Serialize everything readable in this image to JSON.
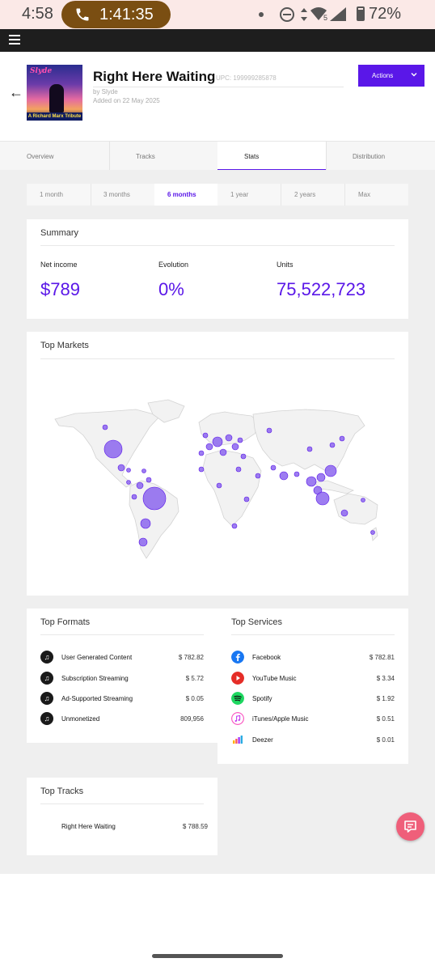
{
  "status_bar": {
    "time": "4:58",
    "call_duration": "1:41:35",
    "signal_badge": "5",
    "battery": "72%"
  },
  "release": {
    "cover_brand": "Slyde",
    "cover_banner": "A Richard Marx Tribute",
    "title": "Right Here Waiting",
    "upc": "UPC: 199999285878",
    "by": "by Slyde",
    "added": "Added on 22 May 2025",
    "actions_label": "Actions"
  },
  "tabs": [
    {
      "label": "Overview",
      "active": false
    },
    {
      "label": "Tracks",
      "active": false
    },
    {
      "label": "Stats",
      "active": true
    },
    {
      "label": "Distribution",
      "active": false
    }
  ],
  "periods": [
    {
      "label": "1 month",
      "active": false
    },
    {
      "label": "3 months",
      "active": false
    },
    {
      "label": "6 months",
      "active": true
    },
    {
      "label": "1 year",
      "active": false
    },
    {
      "label": "2 years",
      "active": false
    },
    {
      "label": "Max",
      "active": false
    }
  ],
  "summary": {
    "title": "Summary",
    "metrics": [
      {
        "label": "Net income",
        "value": "$789"
      },
      {
        "label": "Evolution",
        "value": "0%"
      },
      {
        "label": "Units",
        "value": "75,522,723"
      }
    ]
  },
  "top_markets": {
    "title": "Top Markets"
  },
  "top_formats": {
    "title": "Top Formats",
    "items": [
      {
        "name": "User Generated Content",
        "value": "$ 782.82",
        "icon": "music-note-icon"
      },
      {
        "name": "Subscription Streaming",
        "value": "$ 5.72",
        "icon": "music-note-icon"
      },
      {
        "name": "Ad-Supported Streaming",
        "value": "$ 0.05",
        "icon": "music-note-icon"
      },
      {
        "name": "Unmonetized",
        "value": "809,956",
        "icon": "music-note-icon"
      }
    ]
  },
  "top_services": {
    "title": "Top Services",
    "items": [
      {
        "name": "Facebook",
        "value": "$ 782.81",
        "icon": "facebook-icon",
        "color": "#1877f2"
      },
      {
        "name": "YouTube Music",
        "value": "$ 3.34",
        "icon": "youtube-music-icon",
        "color": "#e52d27"
      },
      {
        "name": "Spotify",
        "value": "$ 1.92",
        "icon": "spotify-icon",
        "color": "#1ed760"
      },
      {
        "name": "iTunes/Apple Music",
        "value": "$ 0.51",
        "icon": "apple-music-icon",
        "color": "#fa57c1"
      },
      {
        "name": "Deezer",
        "value": "$ 0.01",
        "icon": "deezer-icon",
        "color": "#a238ff"
      }
    ]
  },
  "top_tracks": {
    "title": "Top Tracks",
    "items": [
      {
        "name": "Right Here Waiting",
        "value": "$ 788.59"
      }
    ]
  },
  "colors": {
    "accent": "#5a17e8",
    "market_bubble": "#8c66ee",
    "fab": "#ef5f7a"
  }
}
